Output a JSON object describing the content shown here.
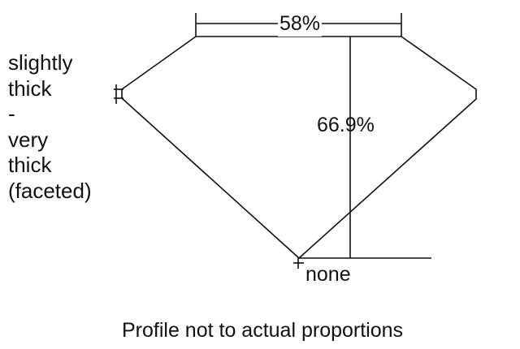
{
  "diagram": {
    "table_label": "58%",
    "depth_label": "66.9%",
    "girdle_label_lines": [
      "slightly",
      "thick",
      "-",
      "very",
      "thick",
      "(faceted)"
    ],
    "culet_label": "none",
    "caption": "Profile not to actual proportions"
  }
}
